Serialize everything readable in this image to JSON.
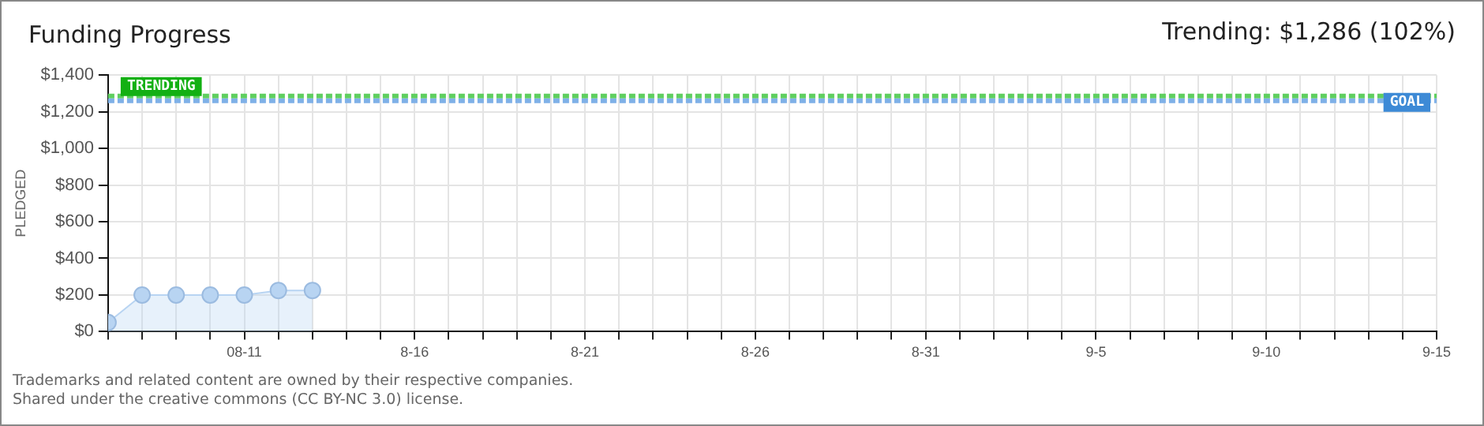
{
  "chart_data": {
    "type": "area",
    "title": "Funding Progress",
    "subtitle": "Trending: $1,286 (102%)",
    "ylabel": "PLEDGED",
    "x": [
      "--08-07",
      "--08-08",
      "--08-09",
      "--08-10",
      "--08-11",
      "--08-12",
      "--08-13"
    ],
    "series": [
      {
        "color": "#b8d4f2",
        "values": [
          50,
          200,
          200,
          200,
          200,
          225,
          225
        ]
      }
    ],
    "xlim": [
      "--08-07",
      "--09-15"
    ],
    "xticks": [
      {
        "value": "--08-07",
        "label": null
      },
      {
        "value": "--08-08",
        "label": null
      },
      {
        "value": "--08-09",
        "label": null
      },
      {
        "value": "--08-10",
        "label": null
      },
      {
        "value": "--08-11",
        "label": "08-11"
      },
      {
        "value": "--08-12",
        "label": null
      },
      {
        "value": "--08-13",
        "label": null
      },
      {
        "value": "--08-14",
        "label": null
      },
      {
        "value": "--08-15",
        "label": null
      },
      {
        "value": "--08-16",
        "label": "8-16"
      },
      {
        "value": "--08-17",
        "label": null
      },
      {
        "value": "--08-18",
        "label": null
      },
      {
        "value": "--08-19",
        "label": null
      },
      {
        "value": "--08-20",
        "label": null
      },
      {
        "value": "--08-21",
        "label": "8-21"
      },
      {
        "value": "--08-22",
        "label": null
      },
      {
        "value": "--08-23",
        "label": null
      },
      {
        "value": "--08-24",
        "label": null
      },
      {
        "value": "--08-25",
        "label": null
      },
      {
        "value": "--08-26",
        "label": "8-26"
      },
      {
        "value": "--08-27",
        "label": null
      },
      {
        "value": "--08-28",
        "label": null
      },
      {
        "value": "--08-29",
        "label": null
      },
      {
        "value": "--08-30",
        "label": null
      },
      {
        "value": "--08-31",
        "label": "8-31"
      },
      {
        "value": "--09-01",
        "label": null
      },
      {
        "value": "--09-02",
        "label": null
      },
      {
        "value": "--09-03",
        "label": null
      },
      {
        "value": "--09-04",
        "label": null
      },
      {
        "value": "--09-05",
        "label": "9-5"
      },
      {
        "value": "--09-06",
        "label": null
      },
      {
        "value": "--09-07",
        "label": null
      },
      {
        "value": "--09-08",
        "label": null
      },
      {
        "value": "--09-09",
        "label": null
      },
      {
        "value": "--09-10",
        "label": "9-10"
      },
      {
        "value": "--09-11",
        "label": null
      },
      {
        "value": "--09-12",
        "label": null
      },
      {
        "value": "--09-13",
        "label": null
      },
      {
        "value": "--09-14",
        "label": null
      },
      {
        "value": "--09-15",
        "label": "9-15"
      }
    ],
    "ylim": [
      0,
      1400
    ],
    "yticks": [
      {
        "value": 0,
        "label": "$0"
      },
      {
        "value": 200,
        "label": "$200"
      },
      {
        "value": 400,
        "label": "$400"
      },
      {
        "value": 600,
        "label": "$600"
      },
      {
        "value": 800,
        "label": "$800"
      },
      {
        "value": 1000,
        "label": "$1,000"
      },
      {
        "value": 1200,
        "label": "$1,200"
      },
      {
        "value": 1400,
        "label": "$1,400"
      }
    ],
    "ref_lines": [
      {
        "axis": "y",
        "value": 1286,
        "label": "TRENDING",
        "color": "#5fcf5f",
        "line_style": "dashed"
      },
      {
        "axis": "y",
        "value": 1260,
        "label": "GOAL",
        "color": "#7fb0e8",
        "line_style": "dashed"
      }
    ],
    "grid": true,
    "legend": false,
    "marker": "circle",
    "annotations": [
      "Trademarks and related content are owned by their respective companies.",
      "Shared under the creative commons (CC BY-NC 3.0) license."
    ]
  }
}
